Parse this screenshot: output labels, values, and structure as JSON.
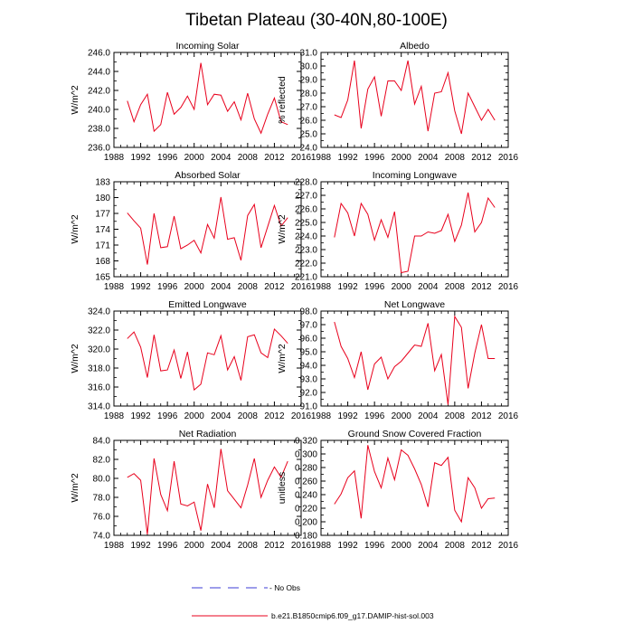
{
  "title": "Tibetan Plateau (30-40N,80-100E)",
  "legend": {
    "obs": "- No Obs",
    "model": "b.e21.B1850cmip6.f09_g17.DAMIP-hist-sol.003",
    "obs_color": "#3b3bd6",
    "model_color": "#e8001c"
  },
  "colors": {
    "series": "#e8001c",
    "axis": "#000000"
  },
  "chart_data": [
    {
      "type": "line",
      "title": "Incoming Solar",
      "ylabel": "W/m^2",
      "xlim": [
        1988,
        2016
      ],
      "xticks": [
        1988,
        1992,
        1996,
        2000,
        2004,
        2008,
        2012,
        2016
      ],
      "ylim": [
        236.0,
        246.0
      ],
      "yticks": [
        "236.0",
        "238.0",
        "240.0",
        "242.0",
        "244.0",
        "246.0"
      ],
      "x": [
        1990,
        1991,
        1992,
        1993,
        1994,
        1995,
        1996,
        1997,
        1998,
        1999,
        2000,
        2001,
        2002,
        2003,
        2004,
        2005,
        2006,
        2007,
        2008,
        2009,
        2010,
        2011,
        2012,
        2013,
        2014
      ],
      "y": [
        240.9,
        238.7,
        240.5,
        241.6,
        237.7,
        238.4,
        241.8,
        239.5,
        240.2,
        241.4,
        240.0,
        244.9,
        240.5,
        241.6,
        241.5,
        239.8,
        240.8,
        238.9,
        241.7,
        239.0,
        237.5,
        239.5,
        241.2,
        238.7,
        238.4
      ]
    },
    {
      "type": "line",
      "title": "Albedo",
      "ylabel": "% reflected",
      "xlim": [
        1988,
        2016
      ],
      "xticks": [
        1988,
        1992,
        1996,
        2000,
        2004,
        2008,
        2012,
        2016
      ],
      "ylim": [
        24.0,
        31.0
      ],
      "yticks": [
        "24.0",
        "25.0",
        "26.0",
        "27.0",
        "28.0",
        "29.0",
        "30.0",
        "31.0"
      ],
      "x": [
        1990,
        1991,
        1992,
        1993,
        1994,
        1995,
        1996,
        1997,
        1998,
        1999,
        2000,
        2001,
        2002,
        2003,
        2004,
        2005,
        2006,
        2007,
        2008,
        2009,
        2010,
        2011,
        2012,
        2013,
        2014
      ],
      "y": [
        26.4,
        26.2,
        27.5,
        30.4,
        25.4,
        28.3,
        29.2,
        26.3,
        28.9,
        28.9,
        28.2,
        30.4,
        27.2,
        28.5,
        25.2,
        28.0,
        28.1,
        29.5,
        26.7,
        25.0,
        28.0,
        27.0,
        26.0,
        26.8,
        26.0
      ]
    },
    {
      "type": "line",
      "title": "Absorbed Solar",
      "ylabel": "W/m^2",
      "xlim": [
        1988,
        2016
      ],
      "xticks": [
        1988,
        1992,
        1996,
        2000,
        2004,
        2008,
        2012,
        2016
      ],
      "ylim": [
        165,
        183
      ],
      "yticks": [
        "165",
        "168",
        "171",
        "174",
        "177",
        "180",
        "183"
      ],
      "x": [
        1990,
        1991,
        1992,
        1993,
        1994,
        1995,
        1996,
        1997,
        1998,
        1999,
        2000,
        2001,
        2002,
        2003,
        2004,
        2005,
        2006,
        2007,
        2008,
        2009,
        2010,
        2011,
        2012,
        2013,
        2014
      ],
      "y": [
        177.1,
        175.6,
        174.2,
        167.3,
        177.0,
        170.5,
        170.7,
        176.5,
        170.3,
        171.0,
        171.9,
        169.5,
        174.9,
        172.3,
        180.1,
        172.1,
        172.4,
        168.1,
        176.6,
        178.7,
        170.5,
        174.5,
        178.5,
        174.6,
        176.2
      ]
    },
    {
      "type": "line",
      "title": "Incoming Longwave",
      "ylabel": "W/m^2",
      "xlim": [
        1988,
        2016
      ],
      "xticks": [
        1988,
        1992,
        1996,
        2000,
        2004,
        2008,
        2012,
        2016
      ],
      "ylim": [
        221.0,
        228.0
      ],
      "yticks": [
        "221.0",
        "222.0",
        "223.0",
        "224.0",
        "225.0",
        "226.0",
        "227.0",
        "228.0"
      ],
      "x": [
        1990,
        1991,
        1992,
        1993,
        1994,
        1995,
        1996,
        1997,
        1998,
        1999,
        2000,
        2001,
        2002,
        2003,
        2004,
        2005,
        2006,
        2007,
        2008,
        2009,
        2010,
        2011,
        2012,
        2013,
        2014
      ],
      "y": [
        223.9,
        226.4,
        225.7,
        224.0,
        226.4,
        225.6,
        223.7,
        225.2,
        223.9,
        225.8,
        221.3,
        221.4,
        224.0,
        224.0,
        224.3,
        224.2,
        224.4,
        225.6,
        223.6,
        224.8,
        227.2,
        224.3,
        225.0,
        226.8,
        226.1
      ]
    },
    {
      "type": "line",
      "title": "Emitted Longwave",
      "ylabel": "W/m^2",
      "xlim": [
        1988,
        2016
      ],
      "xticks": [
        1988,
        1992,
        1996,
        2000,
        2004,
        2008,
        2012,
        2016
      ],
      "ylim": [
        314.0,
        324.0
      ],
      "yticks": [
        "314.0",
        "316.0",
        "318.0",
        "320.0",
        "322.0",
        "324.0"
      ],
      "x": [
        1990,
        1991,
        1992,
        1993,
        1994,
        1995,
        1996,
        1997,
        1998,
        1999,
        2000,
        2001,
        2002,
        2003,
        2004,
        2005,
        2006,
        2007,
        2008,
        2009,
        2010,
        2011,
        2012,
        2013,
        2014
      ],
      "y": [
        321.1,
        321.8,
        320.2,
        317.0,
        321.5,
        317.7,
        317.8,
        319.9,
        316.9,
        319.7,
        315.7,
        316.3,
        319.6,
        319.4,
        321.4,
        317.8,
        319.2,
        316.7,
        321.3,
        321.5,
        319.6,
        319.1,
        322.1,
        321.4,
        320.6
      ]
    },
    {
      "type": "line",
      "title": "Net Longwave",
      "ylabel": "W/m^2",
      "xlim": [
        1988,
        2016
      ],
      "xticks": [
        1988,
        1992,
        1996,
        2000,
        2004,
        2008,
        2012,
        2016
      ],
      "ylim": [
        91.0,
        98.0
      ],
      "yticks": [
        "91.0",
        "92.0",
        "93.0",
        "94.0",
        "95.0",
        "96.0",
        "97.0",
        "98.0"
      ],
      "x": [
        1990,
        1991,
        1992,
        1993,
        1994,
        1995,
        1996,
        1997,
        1998,
        1999,
        2000,
        2001,
        2002,
        2003,
        2004,
        2005,
        2006,
        2007,
        2008,
        2009,
        2010,
        2011,
        2012,
        2013,
        2014
      ],
      "y": [
        97.2,
        95.4,
        94.5,
        93.1,
        95.0,
        92.2,
        94.1,
        94.6,
        93.0,
        93.9,
        94.3,
        94.9,
        95.5,
        95.4,
        97.1,
        93.6,
        94.8,
        91.1,
        97.6,
        96.8,
        92.3,
        94.9,
        97.0,
        94.5,
        94.5
      ]
    },
    {
      "type": "line",
      "title": "Net Radiation",
      "ylabel": "W/m^2",
      "xlim": [
        1988,
        2016
      ],
      "xticks": [
        1988,
        1992,
        1996,
        2000,
        2004,
        2008,
        2012,
        2016
      ],
      "ylim": [
        74.0,
        84.0
      ],
      "yticks": [
        "74.0",
        "76.0",
        "78.0",
        "80.0",
        "82.0",
        "84.0"
      ],
      "x": [
        1990,
        1991,
        1992,
        1993,
        1994,
        1995,
        1996,
        1997,
        1998,
        1999,
        2000,
        2001,
        2002,
        2003,
        2004,
        2005,
        2006,
        2007,
        2008,
        2009,
        2010,
        2011,
        2012,
        2013,
        2014
      ],
      "y": [
        80.1,
        80.5,
        79.8,
        74.1,
        82.1,
        78.3,
        76.6,
        81.8,
        77.3,
        77.1,
        77.5,
        74.5,
        79.4,
        76.9,
        83.1,
        78.7,
        77.8,
        76.9,
        79.3,
        82.1,
        78.0,
        79.8,
        81.2,
        80.1,
        81.8
      ]
    },
    {
      "type": "line",
      "title": "Ground Snow Covered Fraction",
      "ylabel": "unitless",
      "xlim": [
        1988,
        2016
      ],
      "xticks": [
        1988,
        1992,
        1996,
        2000,
        2004,
        2008,
        2012,
        2016
      ],
      "ylim": [
        0.18,
        0.32
      ],
      "yticks": [
        "0.180",
        "0.200",
        "0.220",
        "0.240",
        "0.260",
        "0.280",
        "0.300",
        "0.320"
      ],
      "x": [
        1990,
        1991,
        1992,
        1993,
        1994,
        1995,
        1996,
        1997,
        1998,
        1999,
        2000,
        2001,
        2002,
        2003,
        2004,
        2005,
        2006,
        2007,
        2008,
        2009,
        2010,
        2011,
        2012,
        2013,
        2014
      ],
      "y": [
        0.226,
        0.241,
        0.265,
        0.275,
        0.205,
        0.313,
        0.274,
        0.25,
        0.294,
        0.262,
        0.306,
        0.298,
        0.278,
        0.255,
        0.222,
        0.287,
        0.283,
        0.295,
        0.217,
        0.2,
        0.265,
        0.25,
        0.22,
        0.234,
        0.235
      ]
    }
  ]
}
